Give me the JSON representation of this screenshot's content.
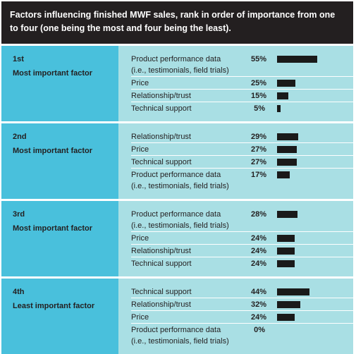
{
  "title": "Factors influencing finished MWF sales, rank in order of importance from one to four (one being the most and four being the least).",
  "groups": [
    {
      "rank": "1st",
      "label": "Most important factor",
      "rows": [
        {
          "factor": "Product performance data",
          "detail": "(i.e., testimonials, field trials)",
          "value": 55,
          "label": "55%"
        },
        {
          "factor": "Price",
          "value": 25,
          "label": "25%"
        },
        {
          "factor": "Relationship/trust",
          "value": 15,
          "label": "15%"
        },
        {
          "factor": "Technical support",
          "value": 5,
          "label": "5%"
        }
      ]
    },
    {
      "rank": "2nd",
      "label": "Most important factor",
      "rows": [
        {
          "factor": "Relationship/trust",
          "value": 29,
          "label": "29%"
        },
        {
          "factor": "Price",
          "value": 27,
          "label": "27%"
        },
        {
          "factor": "Technical support",
          "value": 27,
          "label": "27%"
        },
        {
          "factor": "Product performance data",
          "detail": "(i.e., testimonials, field trials)",
          "value": 17,
          "label": "17%"
        }
      ]
    },
    {
      "rank": "3rd",
      "label": "Most important factor",
      "rows": [
        {
          "factor": "Product performance data",
          "detail": "(i.e., testimonials, field trials)",
          "value": 28,
          "label": "28%"
        },
        {
          "factor": "Price",
          "value": 24,
          "label": "24%"
        },
        {
          "factor": "Relationship/trust",
          "value": 24,
          "label": "24%"
        },
        {
          "factor": "Technical support",
          "value": 24,
          "label": "24%"
        }
      ]
    },
    {
      "rank": "4th",
      "label": "Least important factor",
      "rows": [
        {
          "factor": "Technical support",
          "value": 44,
          "label": "44%"
        },
        {
          "factor": "Relationship/trust",
          "value": 32,
          "label": "32%"
        },
        {
          "factor": "Price",
          "value": 24,
          "label": "24%"
        },
        {
          "factor": "Product performance data",
          "detail": "(i.e., testimonials, field trials)",
          "value": 0,
          "label": "0%"
        }
      ]
    }
  ]
}
